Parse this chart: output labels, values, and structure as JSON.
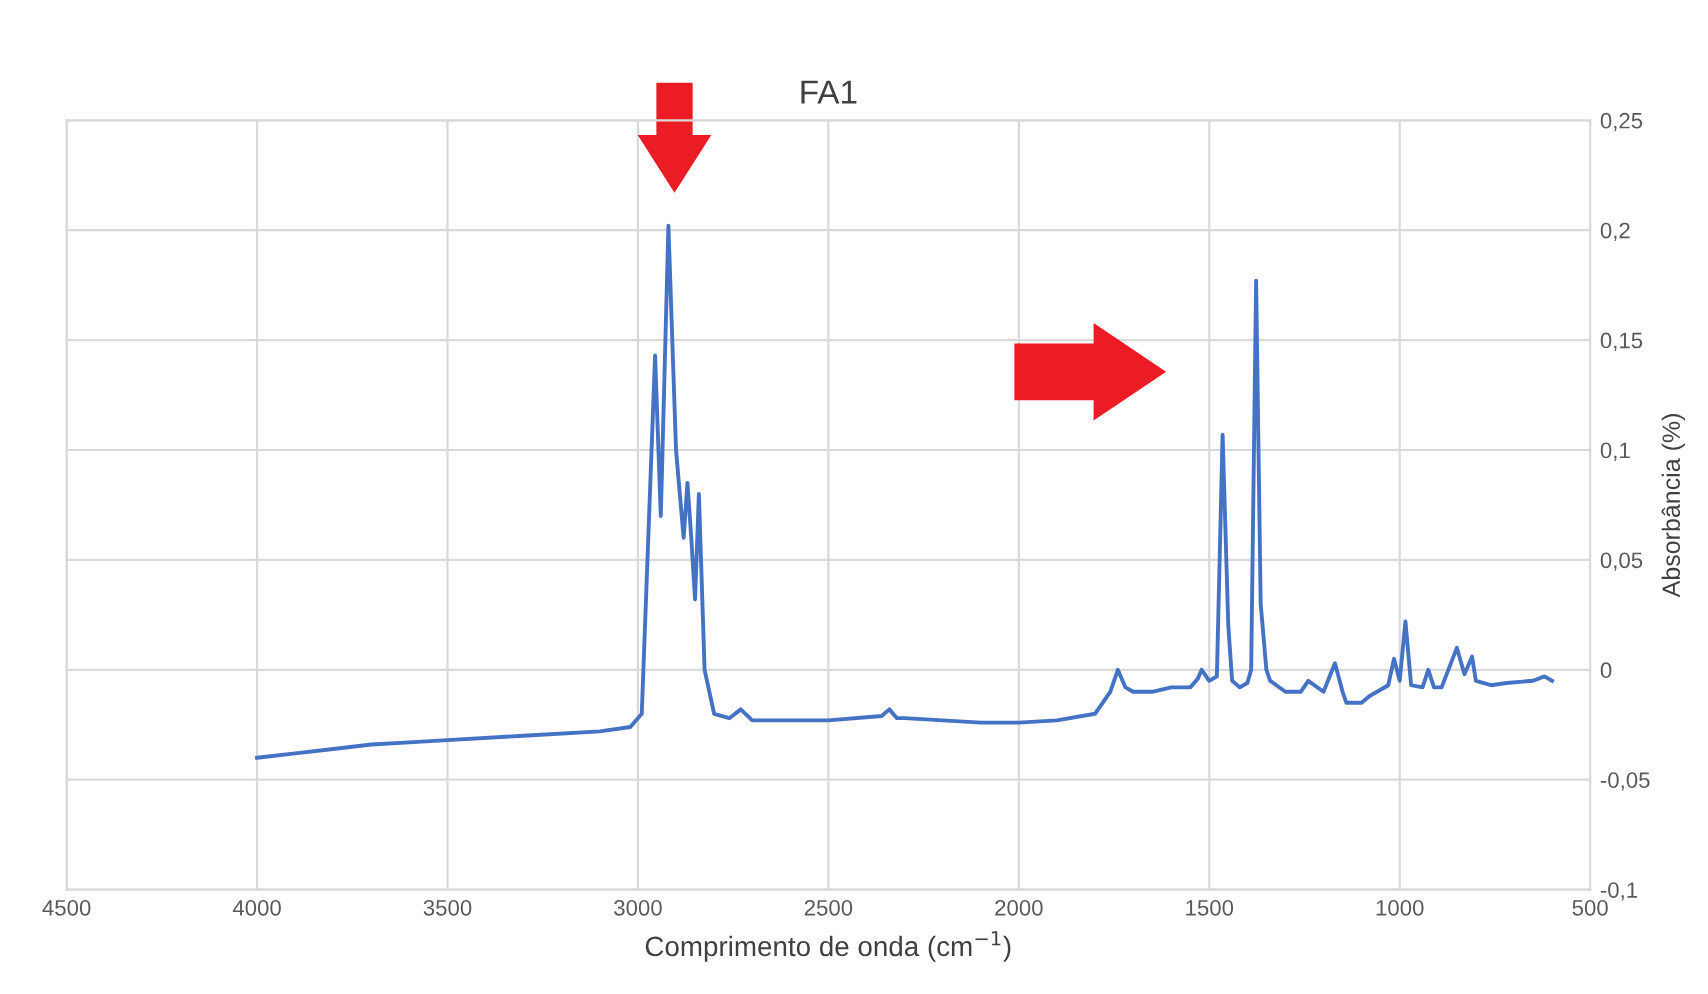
{
  "chart_data": {
    "type": "line",
    "title": "FA1",
    "xlabel": "Comprimento de onda (cm$^{−1}$)",
    "ylabel": "Absorbância (%)",
    "xlim": [
      4500,
      500
    ],
    "xticks": [
      4500,
      4000,
      3500,
      3000,
      2500,
      2000,
      1500,
      1000,
      500
    ],
    "ylim": [
      -0.1,
      0.25
    ],
    "yticks": [
      {
        "value": -0.1,
        "label": "-0,1"
      },
      {
        "value": -0.05,
        "label": "-0,05"
      },
      {
        "value": 0,
        "label": "0"
      },
      {
        "value": 0.05,
        "label": "0,05"
      },
      {
        "value": 0.1,
        "label": "0,1"
      },
      {
        "value": 0.15,
        "label": "0,15"
      },
      {
        "value": 0.2,
        "label": "0,2"
      },
      {
        "value": 0.25,
        "label": "0,25"
      }
    ],
    "grid": true,
    "marker": "none",
    "line_style": "solid",
    "series": [
      {
        "color": "#4472c4",
        "x": [
          4000,
          3900,
          3800,
          3700,
          3600,
          3500,
          3300,
          3100,
          3020,
          2990,
          2975,
          2955,
          2940,
          2920,
          2900,
          2880,
          2870,
          2860,
          2850,
          2840,
          2825,
          2800,
          2760,
          2730,
          2700,
          2500,
          2360,
          2340,
          2320,
          2300,
          2100,
          2000,
          1900,
          1800,
          1760,
          1740,
          1720,
          1700,
          1650,
          1600,
          1550,
          1530,
          1520,
          1500,
          1480,
          1465,
          1450,
          1440,
          1420,
          1400,
          1390,
          1377,
          1365,
          1350,
          1340,
          1300,
          1260,
          1240,
          1200,
          1170,
          1150,
          1140,
          1100,
          1080,
          1030,
          1015,
          1000,
          985,
          970,
          940,
          925,
          910,
          890,
          850,
          830,
          810,
          800,
          760,
          720,
          650,
          620,
          600
        ],
        "values": [
          -0.04,
          -0.038,
          -0.036,
          -0.034,
          -0.033,
          -0.032,
          -0.03,
          -0.028,
          -0.026,
          -0.02,
          0.05,
          0.143,
          0.07,
          0.202,
          0.1,
          0.06,
          0.085,
          0.06,
          0.032,
          0.08,
          0.0,
          -0.02,
          -0.022,
          -0.018,
          -0.023,
          -0.023,
          -0.021,
          -0.018,
          -0.022,
          -0.022,
          -0.024,
          -0.024,
          -0.023,
          -0.02,
          -0.01,
          0.0,
          -0.008,
          -0.01,
          -0.01,
          -0.008,
          -0.008,
          -0.004,
          0.0,
          -0.005,
          -0.003,
          0.107,
          0.02,
          -0.005,
          -0.008,
          -0.006,
          0.0,
          0.177,
          0.03,
          0.0,
          -0.005,
          -0.01,
          -0.01,
          -0.005,
          -0.01,
          0.003,
          -0.01,
          -0.015,
          -0.015,
          -0.012,
          -0.007,
          0.005,
          -0.005,
          0.022,
          -0.007,
          -0.008,
          0.0,
          -0.008,
          -0.008,
          0.01,
          -0.002,
          0.006,
          -0.005,
          -0.007,
          -0.006,
          -0.005,
          -0.003,
          -0.005
        ]
      }
    ]
  }
}
